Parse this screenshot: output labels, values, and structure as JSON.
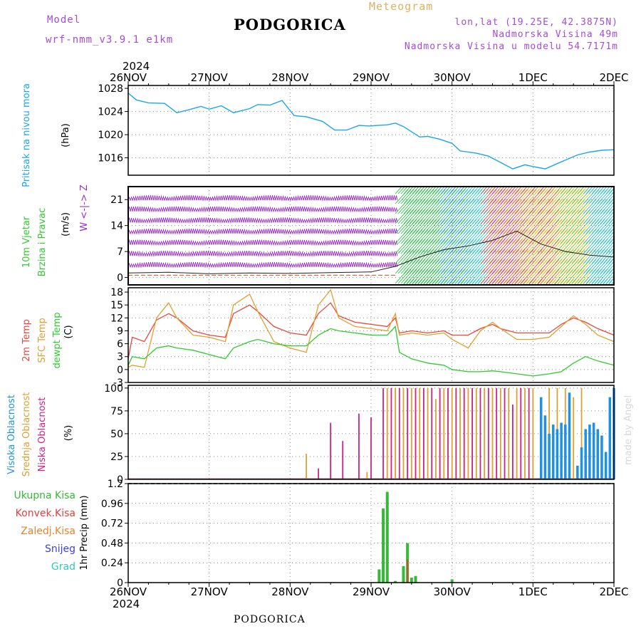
{
  "header": {
    "model_label": "Model",
    "model_name": "wrf-nmm_v3.9.1 e1km",
    "title": "PODGORICA",
    "meteogram": "Meteogram",
    "lonlat": "lon,lat (19.25E, 42.3875N)",
    "elevation": "Nadmorska Visina 49m",
    "model_elevation": "Nadmorska Visina u modelu 54.7171m"
  },
  "footer": {
    "station": "PODGORICA",
    "credit": "made by Angel"
  },
  "time_axis": {
    "year": "2024",
    "ticks": [
      "26NOV",
      "27NOV",
      "28NOV",
      "29NOV",
      "30NOV",
      "1DEC",
      "2DEC"
    ]
  },
  "colors": {
    "pressure": "#1aa7e8",
    "temp2m": "#e8473f",
    "sfc": "#e0a030",
    "dewpt": "#2ecc2e",
    "high_cloud": "#1e90e8",
    "mid_cloud": "#e0a030",
    "low_cloud": "#cc2288",
    "precip_total": "#38b838",
    "precip_conv": "#e04040",
    "precip_frz": "#f08030",
    "precip_snow": "#4040e0",
    "precip_grad": "#30c8b8",
    "wind_purple": "#9a2fc8"
  },
  "chart_data": [
    {
      "type": "line",
      "panel": "pressure",
      "ylabel": [
        "Pritisak na nivou mora",
        "(hPa)"
      ],
      "ylim": [
        1013,
        1028.5
      ],
      "yticks": [
        "1028",
        "1024",
        "1020",
        "1016"
      ],
      "ytick_values": [
        1028,
        1024,
        1020,
        1016
      ],
      "series": [
        {
          "name": "Pritisak na nivou mora",
          "x": [
            0,
            0.1,
            0.25,
            0.45,
            0.6,
            0.75,
            0.9,
            1.0,
            1.15,
            1.3,
            1.5,
            1.6,
            1.75,
            1.9,
            2.05,
            2.2,
            2.4,
            2.55,
            2.7,
            2.85,
            2.98,
            3.08,
            3.2,
            3.3,
            3.4,
            3.6,
            3.7,
            3.85,
            4.0,
            4.1,
            4.3,
            4.45,
            4.6,
            4.75,
            4.9,
            5.0,
            5.15,
            5.3,
            5.45,
            5.55,
            5.7,
            5.85,
            6.0
          ],
          "y": [
            1027.2,
            1026.0,
            1025.5,
            1025.4,
            1023.8,
            1024.3,
            1024.9,
            1024.4,
            1025.0,
            1023.8,
            1024.5,
            1025.2,
            1025.1,
            1025.9,
            1023.3,
            1023.1,
            1022.3,
            1020.8,
            1020.8,
            1021.6,
            1021.5,
            1021.6,
            1021.7,
            1022.0,
            1021.4,
            1019.6,
            1019.7,
            1019.2,
            1018.5,
            1017.2,
            1016.8,
            1016.3,
            1015.2,
            1014.1,
            1014.8,
            1014.5,
            1014.1,
            1015.0,
            1015.9,
            1016.5,
            1017.0,
            1017.3,
            1017.4
          ]
        }
      ]
    },
    {
      "type": "scatter",
      "panel": "wind",
      "ylabel": [
        "10m Vjetar",
        "Brzina i Pravac",
        "(m/s)"
      ],
      "direction_legend": [
        "W",
        "<-|->",
        "Z"
      ],
      "ylim": [
        -2,
        24.5
      ],
      "yticks": [
        "21",
        "14",
        "7",
        "0"
      ],
      "ytick_values": [
        21,
        14,
        7,
        0
      ],
      "series": [
        {
          "name": "10m Vjetar",
          "x": [
            0,
            0.5,
            1.0,
            1.5,
            2.0,
            2.5,
            3.0,
            3.3,
            3.6,
            3.9,
            4.2,
            4.5,
            4.8,
            5.1,
            5.4,
            5.7,
            6.0
          ],
          "y": [
            1.2,
            1.4,
            1.0,
            1.2,
            1.1,
            1.3,
            1.5,
            3.0,
            5.5,
            7.5,
            8.5,
            10.0,
            12.5,
            9.0,
            7.0,
            6.0,
            5.5
          ]
        }
      ]
    },
    {
      "type": "line",
      "panel": "temperature",
      "ylabel": [
        "2m Temp",
        "SFC Temp",
        "dewpt Temp",
        "(C)"
      ],
      "ylim": [
        -3,
        19
      ],
      "yticks": [
        "18",
        "15",
        "12",
        "9",
        "6",
        "3",
        "0",
        "-3"
      ],
      "ytick_values": [
        18,
        15,
        12,
        9,
        6,
        3,
        0,
        -3
      ],
      "series": [
        {
          "name": "2m Temp",
          "x": [
            0,
            0.05,
            0.2,
            0.35,
            0.5,
            0.6,
            0.8,
            1.0,
            1.2,
            1.3,
            1.5,
            1.6,
            1.8,
            2.0,
            2.2,
            2.35,
            2.5,
            2.6,
            2.8,
            3.0,
            3.2,
            3.3,
            3.35,
            3.5,
            3.7,
            3.9,
            4.0,
            4.2,
            4.35,
            4.5,
            4.6,
            4.8,
            5.0,
            5.2,
            5.35,
            5.5,
            5.65,
            5.8,
            6.0
          ],
          "y": [
            2.5,
            7.5,
            6.5,
            11.5,
            13.0,
            12.0,
            9.0,
            8.0,
            7.5,
            13.0,
            15.0,
            13.5,
            10.0,
            8.5,
            8.0,
            13.0,
            15.5,
            12.5,
            11.0,
            10.5,
            10.0,
            12.0,
            8.5,
            9.0,
            8.5,
            9.0,
            8.0,
            8.0,
            9.5,
            10.5,
            9.5,
            8.5,
            8.5,
            8.5,
            10.5,
            12.0,
            11.0,
            9.5,
            8.0
          ]
        },
        {
          "name": "SFC Temp",
          "x": [
            0,
            0.05,
            0.2,
            0.35,
            0.5,
            0.6,
            0.8,
            1.0,
            1.2,
            1.3,
            1.5,
            1.6,
            1.8,
            2.0,
            2.2,
            2.35,
            2.5,
            2.6,
            2.8,
            3.0,
            3.2,
            3.3,
            3.35,
            3.5,
            3.7,
            3.9,
            4.0,
            4.2,
            4.35,
            4.5,
            4.6,
            4.8,
            5.0,
            5.2,
            5.35,
            5.5,
            5.65,
            5.8,
            6.0
          ],
          "y": [
            0.5,
            1.0,
            0.5,
            12.0,
            15.5,
            12.0,
            8.0,
            7.5,
            6.5,
            15.0,
            17.5,
            13.5,
            6.5,
            5.0,
            4.0,
            15.0,
            18.5,
            12.0,
            10.0,
            9.5,
            9.0,
            13.0,
            8.0,
            8.5,
            8.0,
            8.5,
            7.0,
            5.0,
            9.0,
            11.0,
            9.5,
            7.0,
            7.0,
            7.5,
            10.0,
            12.5,
            10.5,
            8.0,
            6.5
          ]
        },
        {
          "name": "dewpt Temp",
          "x": [
            0,
            0.05,
            0.2,
            0.35,
            0.5,
            0.6,
            0.8,
            1.0,
            1.2,
            1.3,
            1.5,
            1.6,
            1.8,
            2.0,
            2.2,
            2.35,
            2.5,
            2.6,
            2.8,
            3.0,
            3.2,
            3.3,
            3.35,
            3.5,
            3.7,
            3.9,
            4.0,
            4.2,
            4.35,
            4.5,
            4.6,
            4.8,
            5.0,
            5.2,
            5.35,
            5.5,
            5.65,
            5.8,
            6.0
          ],
          "y": [
            1.0,
            3.0,
            2.5,
            5.0,
            5.5,
            5.0,
            4.5,
            3.5,
            2.5,
            5.0,
            6.5,
            7.0,
            6.0,
            5.5,
            5.5,
            8.0,
            9.5,
            9.0,
            8.5,
            8.0,
            8.0,
            10.0,
            4.0,
            2.5,
            1.5,
            1.0,
            0.0,
            -0.5,
            -0.5,
            -0.3,
            -0.5,
            -1.0,
            -1.5,
            -1.0,
            -0.5,
            1.5,
            3.0,
            2.0,
            1.0
          ]
        }
      ]
    },
    {
      "type": "bar",
      "panel": "cloud",
      "ylabel": [
        "Visoka Oblacnost",
        "Srednja Oblacnost",
        "Niska Oblacnost",
        "(%)"
      ],
      "ylim": [
        0,
        103
      ],
      "yticks": [
        "100",
        "75",
        "50",
        "25",
        "0"
      ],
      "ytick_values": [
        100,
        75,
        50,
        25,
        0
      ],
      "series": [
        {
          "name": "Niska Oblacnost",
          "x": [
            2.35,
            2.5,
            2.65,
            2.85,
            3.0,
            3.15,
            3.25,
            3.35,
            3.45,
            3.55,
            3.65,
            3.75,
            3.85,
            3.95,
            4.05,
            4.15,
            4.25,
            4.35,
            4.45,
            4.55,
            4.65,
            4.75,
            4.85,
            4.95
          ],
          "y": [
            12,
            62,
            42,
            72,
            68,
            100,
            100,
            100,
            100,
            100,
            100,
            100,
            100,
            100,
            100,
            100,
            100,
            100,
            100,
            100,
            100,
            82,
            100,
            100
          ]
        },
        {
          "name": "Srednja Oblacnost",
          "x": [
            2.2,
            2.95,
            3.2,
            3.3,
            3.4,
            3.5,
            3.6,
            3.7,
            3.8,
            3.9,
            4.0,
            4.1,
            4.2,
            4.3,
            4.4,
            4.5,
            4.6,
            4.7,
            4.8,
            4.9,
            5.0,
            5.1,
            5.2,
            5.3,
            5.4,
            5.5,
            5.6
          ],
          "y": [
            28,
            8,
            100,
            100,
            100,
            100,
            100,
            100,
            88,
            100,
            100,
            100,
            100,
            100,
            100,
            100,
            100,
            100,
            100,
            100,
            100,
            85,
            100,
            100,
            100,
            90,
            100
          ]
        },
        {
          "name": "Visoka Oblacnost",
          "x": [
            5.1,
            5.15,
            5.2,
            5.25,
            5.3,
            5.35,
            5.4,
            5.45,
            5.55,
            5.6,
            5.65,
            5.7,
            5.75,
            5.8,
            5.85,
            5.9,
            5.95,
            6.0
          ],
          "y": [
            90,
            70,
            50,
            60,
            55,
            62,
            60,
            95,
            15,
            35,
            55,
            60,
            62,
            55,
            48,
            30,
            90,
            100
          ]
        }
      ]
    },
    {
      "type": "bar",
      "panel": "precip",
      "ylabel": [
        "1hr Precip (mm)"
      ],
      "legend": [
        "Ukupna Kisa",
        "Konvek.Kisa",
        "Zaledj.Kisa",
        "Snijeg",
        "Grad"
      ],
      "ylim": [
        0,
        1.2
      ],
      "yticks": [
        "1.2",
        "0.96",
        "0.72",
        "0.48",
        "0.24",
        "0"
      ],
      "ytick_values": [
        1.2,
        0.96,
        0.72,
        0.48,
        0.24,
        0
      ],
      "series": [
        {
          "name": "Ukupna Kisa",
          "x": [
            3.1,
            3.15,
            3.2,
            3.3,
            3.4,
            3.45,
            3.5,
            3.55,
            4.0
          ],
          "y": [
            0.16,
            0.9,
            1.1,
            0.02,
            0.2,
            0.48,
            0.06,
            0.08,
            0.04
          ]
        },
        {
          "name": "Konvek.Kisa",
          "x": [
            3.45
          ],
          "y": [
            0.28
          ]
        }
      ]
    }
  ]
}
